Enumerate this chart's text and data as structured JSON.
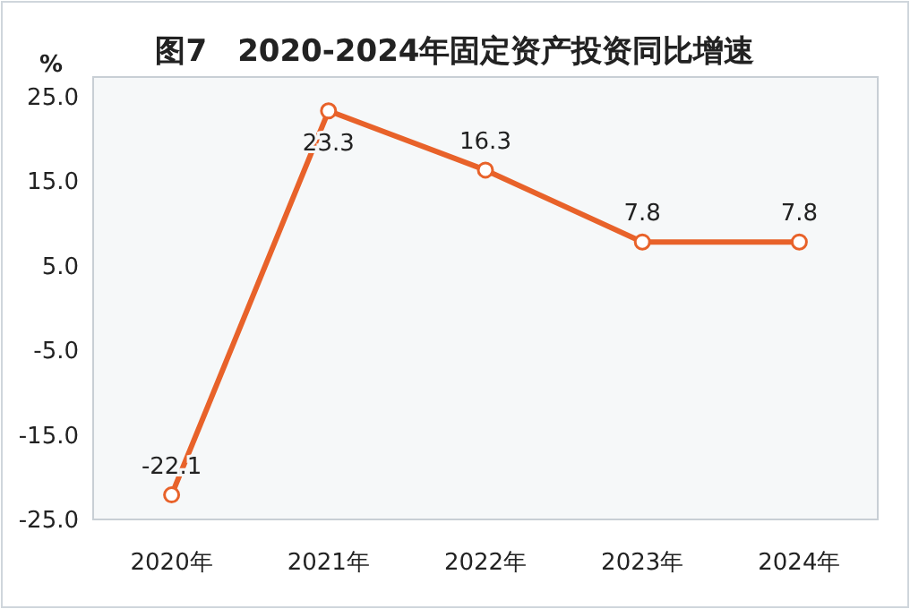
{
  "chart_data": {
    "type": "line",
    "title": "图7　2020-2024年固定资产投资同比增速",
    "ylabel": "%",
    "categories": [
      "2020年",
      "2021年",
      "2022年",
      "2023年",
      "2024年"
    ],
    "series": [
      {
        "color": "#e8622a",
        "values": [
          -22.1,
          23.3,
          16.3,
          7.8,
          7.8
        ]
      }
    ],
    "ylim": [
      -25,
      27.3
    ],
    "yticks": [
      {
        "value": -25,
        "label": "-25.0"
      },
      {
        "value": -15,
        "label": "-15.0"
      },
      {
        "value": -5,
        "label": "-5.0"
      },
      {
        "value": 5,
        "label": "5.0"
      },
      {
        "value": 15,
        "label": "15.0"
      },
      {
        "value": 25,
        "label": "25.0"
      }
    ],
    "marker": "circle",
    "data_labels": true,
    "grid": false
  }
}
